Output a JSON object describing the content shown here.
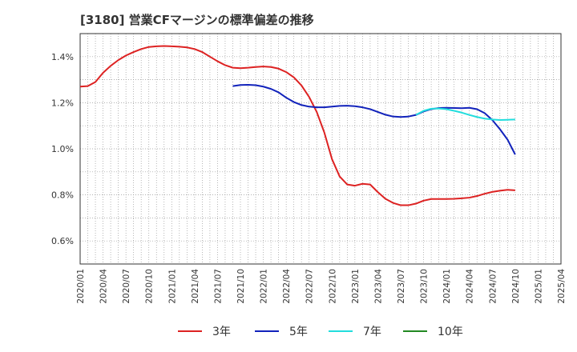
{
  "title": "[3180]  営業CFマージンの標準偏差の推移",
  "chart_data": {
    "type": "line",
    "xlim": [
      "2020-01",
      "2025-04"
    ],
    "ylim": [
      0.5,
      1.5
    ],
    "y_ticks": [
      {
        "v": 0.6,
        "label": "0.6%"
      },
      {
        "v": 0.8,
        "label": "0.8%"
      },
      {
        "v": 1.0,
        "label": "1.0%"
      },
      {
        "v": 1.2,
        "label": "1.2%"
      },
      {
        "v": 1.4,
        "label": "1.4%"
      }
    ],
    "x_ticks": [
      "2020/01",
      "2020/04",
      "2020/07",
      "2020/10",
      "2021/01",
      "2021/04",
      "2021/07",
      "2021/10",
      "2022/01",
      "2022/04",
      "2022/07",
      "2022/10",
      "2023/01",
      "2023/04",
      "2023/07",
      "2023/10",
      "2024/01",
      "2024/04",
      "2024/07",
      "2024/10",
      "2025/01",
      "2025/04"
    ],
    "grid": true,
    "legend_position": "bottom",
    "series": [
      {
        "name": "3年",
        "color": "#dd2222",
        "points": [
          [
            "2020-01",
            1.27
          ],
          [
            "2020-02",
            1.272
          ],
          [
            "2020-03",
            1.29
          ],
          [
            "2020-04",
            1.33
          ],
          [
            "2020-05",
            1.36
          ],
          [
            "2020-06",
            1.385
          ],
          [
            "2020-07",
            1.405
          ],
          [
            "2020-08",
            1.42
          ],
          [
            "2020-09",
            1.433
          ],
          [
            "2020-10",
            1.442
          ],
          [
            "2020-11",
            1.445
          ],
          [
            "2020-12",
            1.446
          ],
          [
            "2021-01",
            1.445
          ],
          [
            "2021-02",
            1.443
          ],
          [
            "2021-03",
            1.44
          ],
          [
            "2021-04",
            1.433
          ],
          [
            "2021-05",
            1.42
          ],
          [
            "2021-06",
            1.4
          ],
          [
            "2021-07",
            1.38
          ],
          [
            "2021-08",
            1.363
          ],
          [
            "2021-09",
            1.352
          ],
          [
            "2021-10",
            1.35
          ],
          [
            "2021-11",
            1.352
          ],
          [
            "2021-12",
            1.355
          ],
          [
            "2022-01",
            1.357
          ],
          [
            "2022-02",
            1.355
          ],
          [
            "2022-03",
            1.348
          ],
          [
            "2022-04",
            1.333
          ],
          [
            "2022-05",
            1.31
          ],
          [
            "2022-06",
            1.275
          ],
          [
            "2022-07",
            1.225
          ],
          [
            "2022-08",
            1.16
          ],
          [
            "2022-09",
            1.07
          ],
          [
            "2022-10",
            0.955
          ],
          [
            "2022-11",
            0.88
          ],
          [
            "2022-12",
            0.845
          ],
          [
            "2023-01",
            0.84
          ],
          [
            "2023-02",
            0.848
          ],
          [
            "2023-03",
            0.845
          ],
          [
            "2023-04",
            0.812
          ],
          [
            "2023-05",
            0.783
          ],
          [
            "2023-06",
            0.765
          ],
          [
            "2023-07",
            0.755
          ],
          [
            "2023-08",
            0.755
          ],
          [
            "2023-09",
            0.762
          ],
          [
            "2023-10",
            0.775
          ],
          [
            "2023-11",
            0.782
          ],
          [
            "2023-12",
            0.782
          ],
          [
            "2024-01",
            0.782
          ],
          [
            "2024-02",
            0.783
          ],
          [
            "2024-03",
            0.785
          ],
          [
            "2024-04",
            0.788
          ],
          [
            "2024-05",
            0.795
          ],
          [
            "2024-06",
            0.805
          ],
          [
            "2024-07",
            0.813
          ],
          [
            "2024-08",
            0.818
          ],
          [
            "2024-09",
            0.822
          ],
          [
            "2024-10",
            0.82
          ]
        ]
      },
      {
        "name": "5年",
        "color": "#1122bb",
        "points": [
          [
            "2021-09",
            1.272
          ],
          [
            "2021-10",
            1.277
          ],
          [
            "2021-11",
            1.278
          ],
          [
            "2021-12",
            1.276
          ],
          [
            "2022-01",
            1.27
          ],
          [
            "2022-02",
            1.26
          ],
          [
            "2022-03",
            1.245
          ],
          [
            "2022-04",
            1.222
          ],
          [
            "2022-05",
            1.203
          ],
          [
            "2022-06",
            1.19
          ],
          [
            "2022-07",
            1.183
          ],
          [
            "2022-08",
            1.18
          ],
          [
            "2022-09",
            1.18
          ],
          [
            "2022-10",
            1.183
          ],
          [
            "2022-11",
            1.186
          ],
          [
            "2022-12",
            1.187
          ],
          [
            "2023-01",
            1.185
          ],
          [
            "2023-02",
            1.18
          ],
          [
            "2023-03",
            1.172
          ],
          [
            "2023-04",
            1.16
          ],
          [
            "2023-05",
            1.148
          ],
          [
            "2023-06",
            1.14
          ],
          [
            "2023-07",
            1.138
          ],
          [
            "2023-08",
            1.14
          ],
          [
            "2023-09",
            1.147
          ],
          [
            "2023-10",
            1.162
          ],
          [
            "2023-11",
            1.172
          ],
          [
            "2023-12",
            1.177
          ],
          [
            "2024-01",
            1.178
          ],
          [
            "2024-02",
            1.177
          ],
          [
            "2024-03",
            1.176
          ],
          [
            "2024-04",
            1.178
          ],
          [
            "2024-05",
            1.172
          ],
          [
            "2024-06",
            1.155
          ],
          [
            "2024-07",
            1.125
          ],
          [
            "2024-08",
            1.085
          ],
          [
            "2024-09",
            1.04
          ],
          [
            "2024-10",
            0.975
          ]
        ]
      },
      {
        "name": "7年",
        "color": "#22dddd",
        "points": [
          [
            "2023-09",
            1.147
          ],
          [
            "2023-10",
            1.165
          ],
          [
            "2023-11",
            1.174
          ],
          [
            "2023-12",
            1.175
          ],
          [
            "2024-01",
            1.172
          ],
          [
            "2024-02",
            1.165
          ],
          [
            "2024-03",
            1.157
          ],
          [
            "2024-04",
            1.147
          ],
          [
            "2024-05",
            1.138
          ],
          [
            "2024-06",
            1.131
          ],
          [
            "2024-07",
            1.127
          ],
          [
            "2024-08",
            1.125
          ],
          [
            "2024-09",
            1.126
          ],
          [
            "2024-10",
            1.127
          ]
        ]
      },
      {
        "name": "10年",
        "color": "#228822",
        "points": []
      }
    ]
  }
}
